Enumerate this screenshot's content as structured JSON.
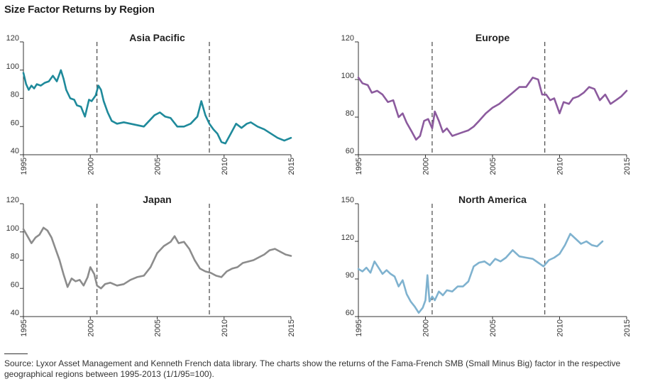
{
  "page": {
    "title": "Size Factor Returns by Region",
    "source": "Source: Lyxor Asset Management and Kenneth French data library. The charts show the returns of the Fama-French SMB (Small Minus Big) factor in the respective geographical regions between 1995-2013 (1/1/95=100)."
  },
  "style": {
    "axis_color": "#333333",
    "dash_color": "#222222"
  },
  "chart_data": [
    {
      "type": "line",
      "title": "Asia Pacific",
      "xlim": [
        1995,
        2015
      ],
      "ylim": [
        40,
        120
      ],
      "yticks": [
        40,
        60,
        80,
        100,
        120
      ],
      "xticks": [
        1995,
        2000,
        2005,
        2010,
        2015
      ],
      "vlines": [
        2000.5,
        2008.9
      ],
      "series": [
        {
          "color": "#1f8a9b",
          "x": [
            1995.0,
            1995.2,
            1995.4,
            1995.6,
            1995.8,
            1996.0,
            1996.3,
            1996.6,
            1996.9,
            1997.2,
            1997.5,
            1997.8,
            1998.0,
            1998.2,
            1998.5,
            1998.8,
            1999.0,
            1999.3,
            1999.6,
            1999.9,
            2000.1,
            2000.4,
            2000.6,
            2000.8,
            2001.0,
            2001.3,
            2001.6,
            2002.0,
            2002.5,
            2003.0,
            2003.5,
            2004.0,
            2004.4,
            2004.8,
            2005.2,
            2005.6,
            2006.0,
            2006.5,
            2007.0,
            2007.5,
            2008.0,
            2008.3,
            2008.6,
            2008.9,
            2009.2,
            2009.5,
            2009.8,
            2010.1,
            2010.5,
            2010.9,
            2011.3,
            2011.7,
            2012.0,
            2012.5,
            2013.0,
            2013.5,
            2014.0,
            2014.5,
            2015.0
          ],
          "y": [
            98,
            90,
            86,
            89,
            87,
            90,
            89,
            91,
            92,
            96,
            92,
            100,
            94,
            86,
            80,
            79,
            75,
            74,
            67,
            79,
            78,
            82,
            89,
            86,
            78,
            70,
            64,
            62,
            63,
            62,
            61,
            60,
            64,
            68,
            70,
            67,
            66,
            60,
            60,
            62,
            67,
            78,
            68,
            62,
            58,
            55,
            49,
            48,
            55,
            62,
            59,
            62,
            63,
            60,
            58,
            55,
            52,
            50,
            52
          ]
        }
      ]
    },
    {
      "type": "line",
      "title": "Europe",
      "xlim": [
        1995,
        2015
      ],
      "ylim": [
        60,
        120
      ],
      "yticks": [
        60,
        80,
        100,
        120
      ],
      "xticks": [
        1995,
        2000,
        2005,
        2010,
        2015
      ],
      "vlines": [
        2000.5,
        2008.9
      ],
      "series": [
        {
          "color": "#8c5b9e",
          "x": [
            1995.0,
            1995.3,
            1995.7,
            1996.0,
            1996.4,
            1996.8,
            1997.2,
            1997.6,
            1998.0,
            1998.3,
            1998.6,
            1999.0,
            1999.3,
            1999.6,
            1999.9,
            2000.2,
            2000.5,
            2000.7,
            2001.0,
            2001.3,
            2001.6,
            2002.0,
            2002.4,
            2002.8,
            2003.2,
            2003.6,
            2004.0,
            2004.5,
            2005.0,
            2005.5,
            2006.0,
            2006.5,
            2007.0,
            2007.5,
            2008.0,
            2008.4,
            2008.7,
            2009.0,
            2009.3,
            2009.6,
            2010.0,
            2010.3,
            2010.7,
            2011.0,
            2011.4,
            2011.8,
            2012.2,
            2012.6,
            2013.0,
            2013.4,
            2013.8,
            2014.2,
            2014.6,
            2015.0
          ],
          "y": [
            101,
            98,
            97,
            93,
            94,
            92,
            88,
            89,
            80,
            82,
            77,
            72,
            68,
            70,
            78,
            79,
            74,
            83,
            78,
            72,
            74,
            70,
            71,
            72,
            73,
            75,
            78,
            82,
            85,
            87,
            90,
            93,
            96,
            96,
            101,
            100,
            92,
            92,
            89,
            90,
            82,
            88,
            87,
            90,
            91,
            93,
            96,
            95,
            89,
            92,
            87,
            89,
            91,
            94
          ]
        }
      ]
    },
    {
      "type": "line",
      "title": "Japan",
      "xlim": [
        1995,
        2015
      ],
      "ylim": [
        40,
        120
      ],
      "yticks": [
        40,
        60,
        80,
        100,
        120
      ],
      "xticks": [
        1995,
        2000,
        2005,
        2010,
        2015
      ],
      "vlines": [
        2000.5,
        2008.9
      ],
      "series": [
        {
          "color": "#8c8c8c",
          "x": [
            1995.0,
            1995.3,
            1995.6,
            1995.9,
            1996.2,
            1996.5,
            1996.8,
            1997.1,
            1997.4,
            1997.7,
            1998.0,
            1998.3,
            1998.6,
            1998.9,
            1999.2,
            1999.5,
            1999.8,
            2000.0,
            2000.3,
            2000.5,
            2000.8,
            2001.1,
            2001.5,
            2002.0,
            2002.5,
            2003.0,
            2003.5,
            2004.0,
            2004.5,
            2005.0,
            2005.5,
            2006.0,
            2006.3,
            2006.6,
            2007.0,
            2007.4,
            2007.8,
            2008.2,
            2008.6,
            2009.0,
            2009.4,
            2009.8,
            2010.2,
            2010.6,
            2011.0,
            2011.4,
            2011.8,
            2012.2,
            2012.6,
            2013.0,
            2013.4,
            2013.8,
            2014.2,
            2014.6,
            2015.0
          ],
          "y": [
            102,
            97,
            92,
            96,
            98,
            103,
            101,
            96,
            88,
            80,
            70,
            61,
            67,
            65,
            66,
            62,
            68,
            75,
            70,
            62,
            60,
            63,
            64,
            62,
            63,
            66,
            68,
            69,
            75,
            85,
            90,
            93,
            97,
            92,
            93,
            88,
            80,
            74,
            72,
            71,
            69,
            68,
            72,
            74,
            75,
            78,
            79,
            80,
            82,
            84,
            87,
            88,
            86,
            84,
            83
          ]
        }
      ]
    },
    {
      "type": "line",
      "title": "North America",
      "xlim": [
        1995,
        2015
      ],
      "ylim": [
        60,
        150
      ],
      "yticks": [
        60,
        90,
        120,
        150
      ],
      "xticks": [
        1995,
        2000,
        2005,
        2010,
        2015
      ],
      "vlines": [
        2000.5,
        2008.9
      ],
      "series": [
        {
          "color": "#7fb2cf",
          "x": [
            1995.0,
            1995.3,
            1995.6,
            1995.9,
            1996.2,
            1996.5,
            1996.8,
            1997.1,
            1997.4,
            1997.7,
            1998.0,
            1998.3,
            1998.6,
            1998.9,
            1999.2,
            1999.5,
            1999.8,
            2000.0,
            2000.15,
            2000.3,
            2000.5,
            2000.7,
            2001.0,
            2001.3,
            2001.6,
            2002.0,
            2002.4,
            2002.8,
            2003.2,
            2003.6,
            2004.0,
            2004.4,
            2004.8,
            2005.2,
            2005.6,
            2006.0,
            2006.5,
            2007.0,
            2007.5,
            2008.0,
            2008.4,
            2008.8,
            2009.2,
            2009.6,
            2010.0,
            2010.4,
            2010.8,
            2011.2,
            2011.6,
            2012.0,
            2012.4,
            2012.8,
            2013.2
          ],
          "y": [
            98,
            96,
            99,
            95,
            104,
            99,
            94,
            97,
            94,
            92,
            84,
            89,
            78,
            72,
            68,
            63,
            67,
            73,
            93,
            72,
            76,
            73,
            80,
            77,
            81,
            80,
            84,
            84,
            88,
            100,
            103,
            104,
            101,
            106,
            104,
            107,
            113,
            108,
            107,
            106,
            103,
            100,
            105,
            107,
            110,
            117,
            126,
            122,
            118,
            120,
            117,
            116,
            120
          ]
        }
      ]
    }
  ]
}
